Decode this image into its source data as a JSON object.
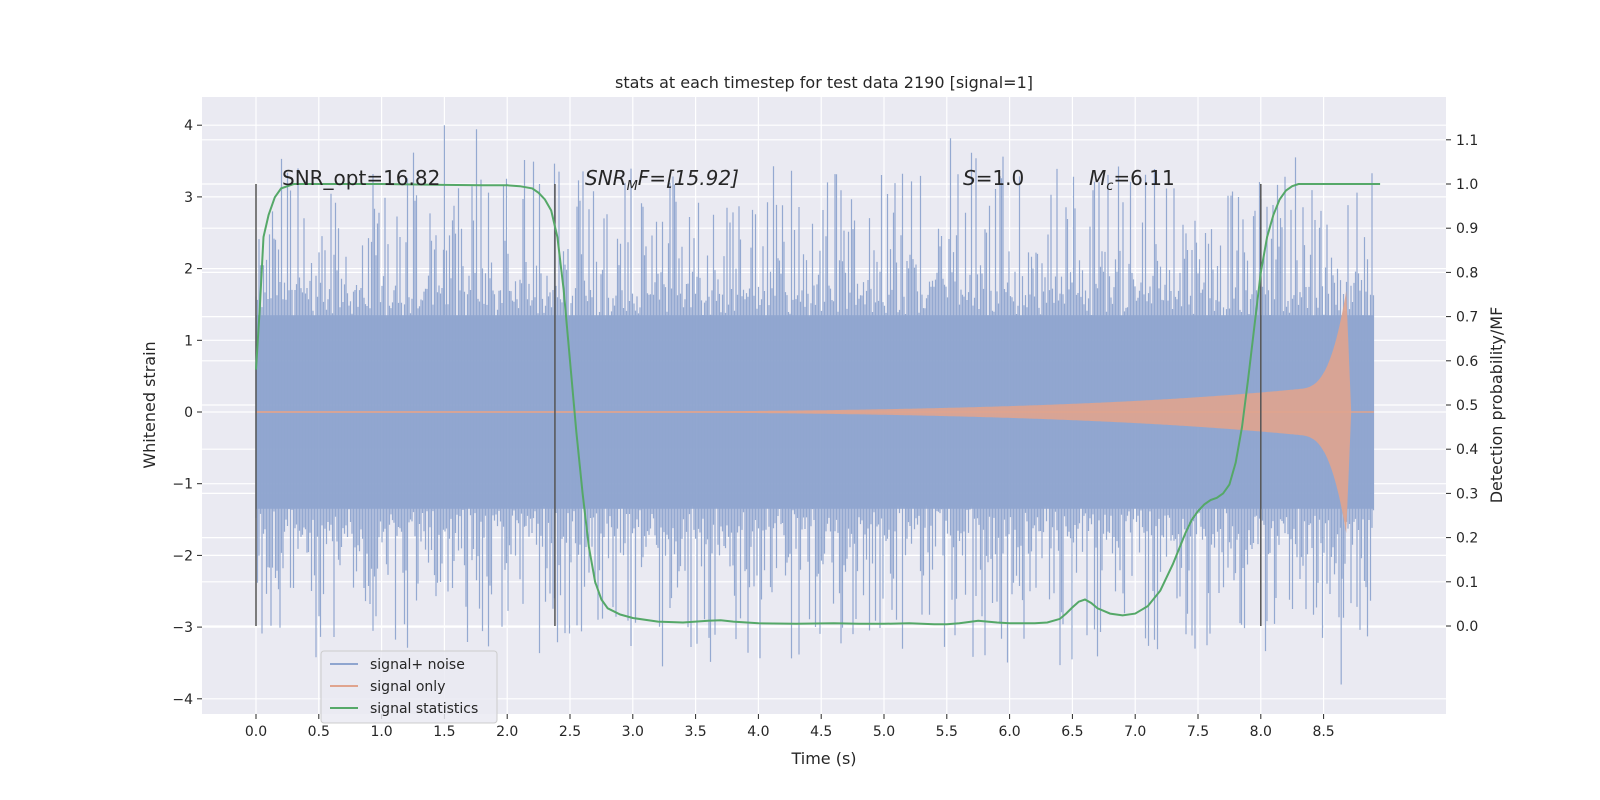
{
  "chart_data": {
    "type": "line",
    "title": "stats at each timestep for test data 2190 [signal=1]",
    "xlabel": "Time (s)",
    "ylabel": "Whitened strain",
    "y2label": "Detection probability/MF",
    "xlim": [
      -0.43,
      9.43
    ],
    "ylim": [
      -4.2,
      4.4
    ],
    "y2lim": [
      -0.19,
      1.19
    ],
    "xticks": [
      "0.0",
      "0.5",
      "1.0",
      "1.5",
      "2.0",
      "2.5",
      "3.0",
      "3.5",
      "4.0",
      "4.5",
      "5.0",
      "5.5",
      "6.0",
      "6.5",
      "7.0",
      "7.5",
      "8.0",
      "8.5"
    ],
    "yticks": [
      "4",
      "3",
      "2",
      "1",
      "0",
      "−1",
      "−2",
      "−3",
      "−4"
    ],
    "y2ticks": [
      "1.1",
      "1.0",
      "0.9",
      "0.8",
      "0.7",
      "0.6",
      "0.5",
      "0.4",
      "0.3",
      "0.2",
      "0.1",
      "0.0"
    ],
    "grid": true,
    "legend_position": "lower-left",
    "annotations": {
      "snr_opt": "SNR_opt=16.82",
      "snr_mf_prefix": "SNR",
      "snr_mf_sub": "M",
      "snr_mf_suffix": "F=[15.92]",
      "s_prefix": "S",
      "s_suffix": "=1.0",
      "mc_prefix": "M",
      "mc_sub": "c",
      "mc_suffix": "=6.11"
    },
    "vertical_markers": [
      0.0,
      2.38,
      8.0
    ],
    "series": [
      {
        "name": "signal+ noise",
        "color": "#8fa5cf",
        "axis": "left",
        "description": "noisy whitened strain, mostly within ±1.5 with spikes to about ±4",
        "envelope": {
          "core": 1.35,
          "peak_max": 4.0,
          "peak_min": -3.8
        }
      },
      {
        "name": "signal only",
        "color": "#e0a48e",
        "axis": "left",
        "description": "chirp signal, amplitude rising from about 0 at t=3.5 to about 2 near t=8.7",
        "envelope": {
          "start": 3.5,
          "end": 8.68,
          "max_amp": 1.9
        }
      },
      {
        "name": "signal statistics",
        "color": "#55a868",
        "axis": "right",
        "x": [
          0.0,
          0.03,
          0.06,
          0.1,
          0.15,
          0.2,
          0.3,
          0.5,
          1.0,
          1.5,
          1.8,
          2.0,
          2.1,
          2.2,
          2.25,
          2.3,
          2.35,
          2.4,
          2.45,
          2.5,
          2.55,
          2.6,
          2.65,
          2.7,
          2.75,
          2.8,
          2.9,
          3.0,
          3.2,
          3.4,
          3.6,
          3.7,
          3.8,
          4.0,
          4.3,
          4.6,
          4.8,
          5.0,
          5.2,
          5.4,
          5.5,
          5.6,
          5.75,
          5.9,
          6.0,
          6.2,
          6.3,
          6.4,
          6.45,
          6.5,
          6.55,
          6.6,
          6.65,
          6.7,
          6.8,
          6.9,
          7.0,
          7.1,
          7.2,
          7.3,
          7.4,
          7.45,
          7.5,
          7.55,
          7.6,
          7.65,
          7.7,
          7.75,
          7.8,
          7.85,
          7.9,
          7.95,
          8.0,
          8.05,
          8.1,
          8.15,
          8.2,
          8.25,
          8.3,
          8.5,
          8.7,
          8.95
        ],
        "values": [
          0.58,
          0.72,
          0.88,
          0.93,
          0.97,
          0.99,
          1.0,
          1.0,
          1.0,
          0.998,
          0.997,
          0.997,
          0.995,
          0.99,
          0.98,
          0.965,
          0.94,
          0.88,
          0.76,
          0.6,
          0.44,
          0.3,
          0.18,
          0.1,
          0.06,
          0.04,
          0.026,
          0.018,
          0.01,
          0.008,
          0.012,
          0.013,
          0.01,
          0.006,
          0.005,
          0.006,
          0.005,
          0.005,
          0.006,
          0.004,
          0.004,
          0.006,
          0.012,
          0.008,
          0.006,
          0.006,
          0.008,
          0.016,
          0.028,
          0.042,
          0.055,
          0.06,
          0.052,
          0.04,
          0.028,
          0.024,
          0.028,
          0.045,
          0.08,
          0.14,
          0.21,
          0.24,
          0.26,
          0.275,
          0.285,
          0.29,
          0.3,
          0.32,
          0.37,
          0.45,
          0.56,
          0.68,
          0.8,
          0.88,
          0.93,
          0.965,
          0.985,
          0.995,
          1.0,
          1.0,
          1.0,
          1.0
        ]
      }
    ]
  }
}
